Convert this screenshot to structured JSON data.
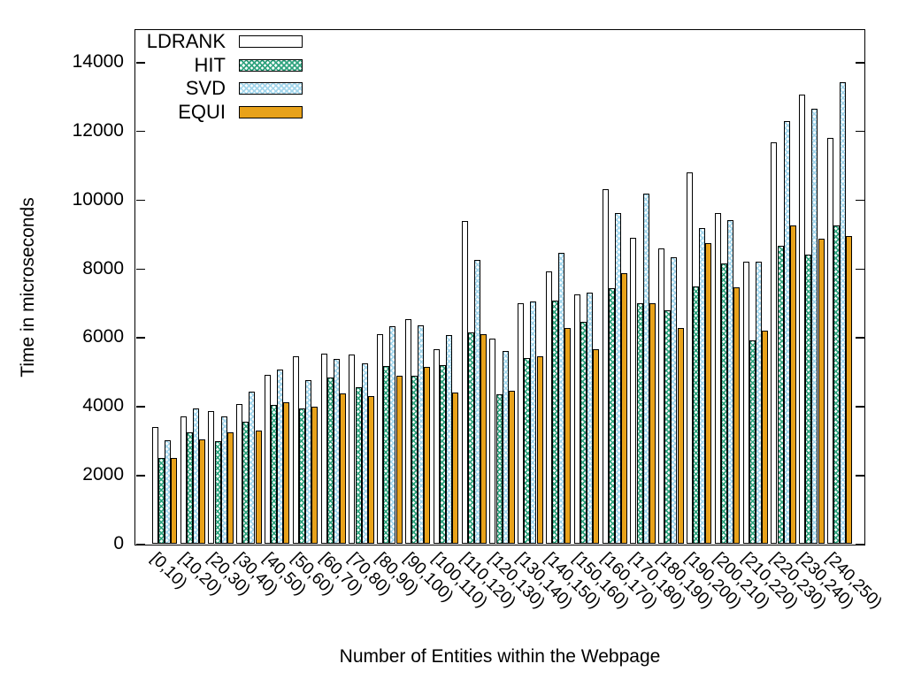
{
  "chart_data": {
    "type": "bar",
    "title": "",
    "xlabel": "Number of Entities within the Webpage",
    "ylabel": "Time in microseconds",
    "categories": [
      "[0,10)",
      "[10,20)",
      "[20,30)",
      "[30,40)",
      "[40,50)",
      "[50,60)",
      "[60,70)",
      "[70,80)",
      "[80,90)",
      "[90,100)",
      "[100,110)",
      "[110,120)",
      "[120,130)",
      "[130,140)",
      "[140,150)",
      "[150,160)",
      "[160,170)",
      "[170,180)",
      "[180,190)",
      "[190,200)",
      "[200,210)",
      "[210,220)",
      "[220,230)",
      "[230,240)",
      "[240,250)"
    ],
    "series": [
      {
        "name": "LDRANK",
        "pattern": "white",
        "color": "#ffffff",
        "values": [
          3400,
          3700,
          3850,
          4050,
          4900,
          5450,
          5520,
          5510,
          6100,
          6520,
          5640,
          9380,
          5950,
          7000,
          7920,
          7250,
          10300,
          8880,
          8570,
          10800,
          9600,
          8200,
          11650,
          13050,
          11800
        ]
      },
      {
        "name": "HIT",
        "pattern": "crosshatch",
        "color": "#2fa37e",
        "values": [
          2480,
          3230,
          2970,
          3550,
          4030,
          3920,
          4840,
          4540,
          5160,
          4880,
          5180,
          6130,
          4330,
          5400,
          7060,
          6450,
          7430,
          7000,
          6780,
          7480,
          8150,
          5900,
          8650,
          8400,
          9250
        ]
      },
      {
        "name": "SVD",
        "pattern": "crosshatch",
        "color": "#a3d6ec",
        "values": [
          3000,
          3920,
          3700,
          4420,
          5050,
          4740,
          5380,
          5250,
          6320,
          6340,
          6070,
          8240,
          5600,
          7030,
          8460,
          7300,
          9600,
          10180,
          8320,
          9180,
          9400,
          8200,
          12280,
          12650,
          13400
        ]
      },
      {
        "name": "EQUI",
        "pattern": "solid",
        "color": "#e8a21a",
        "values": [
          2500,
          3040,
          3230,
          3300,
          4100,
          3980,
          4370,
          4300,
          4870,
          5150,
          4390,
          6080,
          4450,
          5450,
          6270,
          5650,
          7850,
          7000,
          6280,
          8730,
          7450,
          6200,
          9250,
          8870,
          8950
        ]
      }
    ],
    "ylim": [
      0,
      14950
    ],
    "yticks": [
      0,
      2000,
      4000,
      6000,
      8000,
      10000,
      12000,
      14000
    ],
    "grid": false,
    "legend_position": "top-left",
    "axis_color": "#000000",
    "background_color": "#ffffff"
  }
}
